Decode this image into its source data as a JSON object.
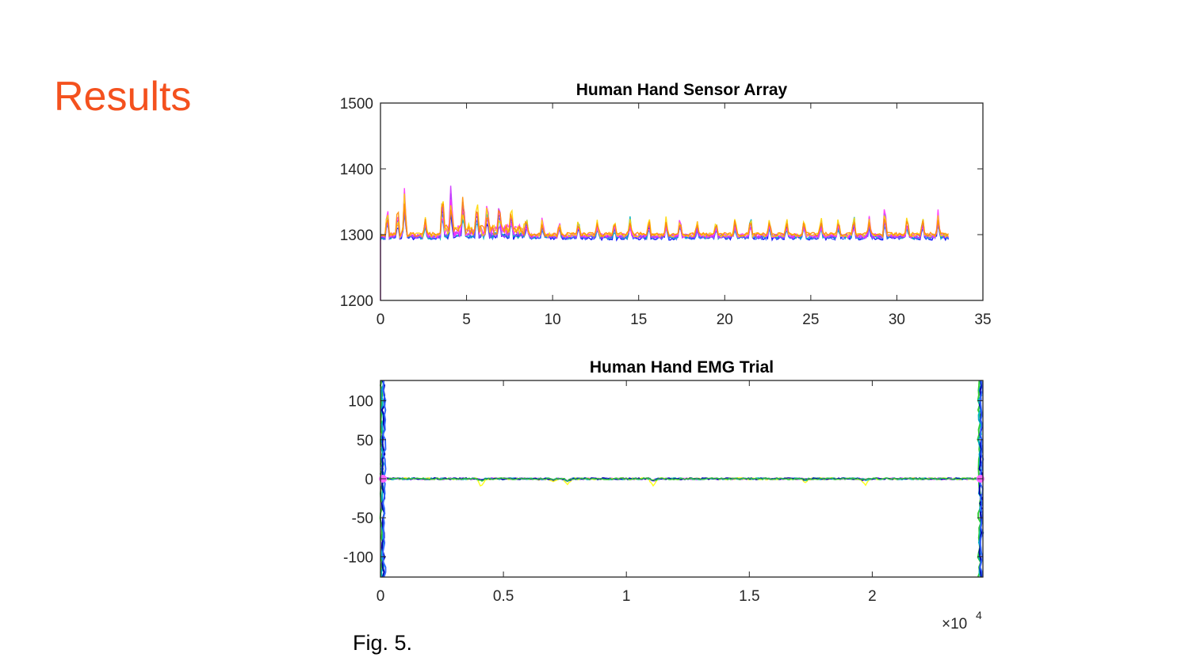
{
  "slide": {
    "heading": "Results",
    "caption": "Fig. 5."
  },
  "chart_data": [
    {
      "type": "line",
      "title": "Human Hand Sensor Array",
      "xlabel": "",
      "ylabel": "",
      "xlim": [
        0,
        35
      ],
      "ylim": [
        1200,
        1500
      ],
      "xticks": [
        "0",
        "5",
        "10",
        "15",
        "20",
        "25",
        "30",
        "35"
      ],
      "yticks": [
        "1200",
        "1300",
        "1400",
        "1500"
      ],
      "grid": false,
      "baseline": 1298,
      "data_end_x": 33,
      "series_colors": [
        "#0000ff",
        "#3366ff",
        "#00b0c0",
        "#9933ff",
        "#cc33ff",
        "#ff33ff",
        "#ffd700",
        "#ff8c00"
      ],
      "spikes": [
        {
          "x": 0.4,
          "y": 1350
        },
        {
          "x": 1.0,
          "y": 1350
        },
        {
          "x": 1.4,
          "y": 1385
        },
        {
          "x": 2.6,
          "y": 1330
        },
        {
          "x": 3.6,
          "y": 1375
        },
        {
          "x": 4.1,
          "y": 1385
        },
        {
          "x": 4.8,
          "y": 1365
        },
        {
          "x": 5.6,
          "y": 1360
        },
        {
          "x": 6.2,
          "y": 1360
        },
        {
          "x": 6.9,
          "y": 1350
        },
        {
          "x": 7.6,
          "y": 1345
        },
        {
          "x": 8.5,
          "y": 1330
        },
        {
          "x": 9.4,
          "y": 1330
        },
        {
          "x": 10.4,
          "y": 1325
        },
        {
          "x": 11.5,
          "y": 1330
        },
        {
          "x": 12.6,
          "y": 1325
        },
        {
          "x": 13.6,
          "y": 1330
        },
        {
          "x": 14.5,
          "y": 1330
        },
        {
          "x": 15.6,
          "y": 1330
        },
        {
          "x": 16.6,
          "y": 1330
        },
        {
          "x": 17.4,
          "y": 1335
        },
        {
          "x": 18.4,
          "y": 1325
        },
        {
          "x": 19.5,
          "y": 1325
        },
        {
          "x": 20.6,
          "y": 1330
        },
        {
          "x": 21.5,
          "y": 1335
        },
        {
          "x": 22.6,
          "y": 1330
        },
        {
          "x": 23.6,
          "y": 1330
        },
        {
          "x": 24.6,
          "y": 1330
        },
        {
          "x": 25.6,
          "y": 1330
        },
        {
          "x": 26.6,
          "y": 1330
        },
        {
          "x": 27.5,
          "y": 1340
        },
        {
          "x": 28.4,
          "y": 1330
        },
        {
          "x": 29.3,
          "y": 1358
        },
        {
          "x": 30.6,
          "y": 1335
        },
        {
          "x": 31.5,
          "y": 1335
        },
        {
          "x": 32.4,
          "y": 1340
        }
      ]
    },
    {
      "type": "line",
      "title": "Human Hand EMG Trial",
      "xlabel": "",
      "ylabel": "",
      "xlim": [
        0,
        2.45
      ],
      "ylim": [
        -126,
        126
      ],
      "xticks": [
        "0",
        "0.5",
        "1",
        "1.5",
        "2"
      ],
      "yticks": [
        "100",
        "50",
        "0",
        "-50",
        "-100"
      ],
      "x_multiplier": "×10",
      "x_multiplier_exp": "4",
      "grid": false,
      "baseline": 0,
      "edge_transients": [
        {
          "x": 0.01,
          "amplitude": 126
        },
        {
          "x": 2.44,
          "amplitude": 126
        }
      ],
      "series_colors": [
        "#ff66ff",
        "#9933ff",
        "#ffff00",
        "#00b0c0",
        "#0000aa",
        "#33cc33"
      ],
      "spikes": [
        {
          "x": 0.41,
          "y": -12
        },
        {
          "x": 0.65,
          "y": 16
        },
        {
          "x": 0.65,
          "y": -18
        },
        {
          "x": 0.7,
          "y": -10
        },
        {
          "x": 0.76,
          "y": -16
        },
        {
          "x": 1.11,
          "y": -14
        },
        {
          "x": 1.73,
          "y": -9
        },
        {
          "x": 1.97,
          "y": -25
        },
        {
          "x": 1.97,
          "y": 12
        }
      ]
    }
  ]
}
